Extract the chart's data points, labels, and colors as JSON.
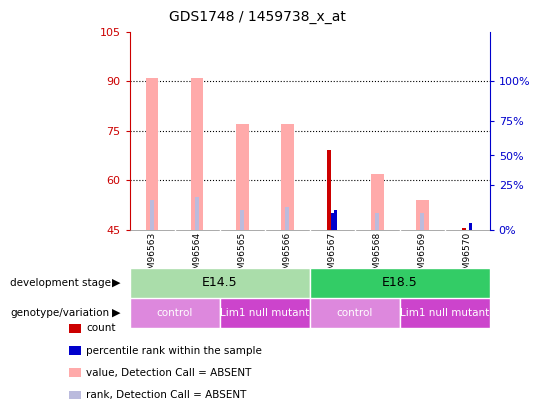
{
  "title": "GDS1748 / 1459738_x_at",
  "samples": [
    "GSM96563",
    "GSM96564",
    "GSM96565",
    "GSM96566",
    "GSM96567",
    "GSM96568",
    "GSM96569",
    "GSM96570"
  ],
  "ylim": [
    45,
    105
  ],
  "yticks_left": [
    45,
    60,
    75,
    90,
    105
  ],
  "yticks_right_labels": [
    "0%",
    "25%",
    "50%",
    "75%",
    "100%"
  ],
  "yticks_right_pos": [
    45,
    58.5,
    67.5,
    78.0,
    90.0
  ],
  "value_bars": [
    91,
    91,
    77,
    77,
    45,
    62,
    54,
    45
  ],
  "rank_bars": [
    54,
    55,
    51,
    52,
    50,
    50,
    50,
    45
  ],
  "count_bars": [
    45,
    45,
    45,
    45,
    69,
    45,
    45,
    45.5
  ],
  "percentile_bars": [
    45,
    45,
    45,
    45,
    51,
    45,
    45,
    47
  ],
  "absent_value": [
    true,
    true,
    true,
    true,
    false,
    true,
    true,
    true
  ],
  "absent_rank": [
    true,
    true,
    true,
    true,
    false,
    true,
    true,
    true
  ],
  "color_value_absent": "#ffaaaa",
  "color_rank_absent": "#bbbbdd",
  "color_count_present": "#cc0000",
  "color_percentile_present": "#0000cc",
  "dev_stages": [
    {
      "label": "E14.5",
      "start": 0,
      "end": 4,
      "color": "#aaddaa"
    },
    {
      "label": "E18.5",
      "start": 4,
      "end": 8,
      "color": "#33cc66"
    }
  ],
  "genotypes": [
    {
      "label": "control",
      "start": 0,
      "end": 2,
      "color": "#dd88dd"
    },
    {
      "label": "Lim1 null mutant",
      "start": 2,
      "end": 4,
      "color": "#cc44cc"
    },
    {
      "label": "control",
      "start": 4,
      "end": 6,
      "color": "#dd88dd"
    },
    {
      "label": "Lim1 null mutant",
      "start": 6,
      "end": 8,
      "color": "#cc44cc"
    }
  ],
  "legend_items": [
    {
      "label": "count",
      "color": "#cc0000"
    },
    {
      "label": "percentile rank within the sample",
      "color": "#0000cc"
    },
    {
      "label": "value, Detection Call = ABSENT",
      "color": "#ffaaaa"
    },
    {
      "label": "rank, Detection Call = ABSENT",
      "color": "#bbbbdd"
    }
  ],
  "axis_color_left": "#cc0000",
  "axis_color_right": "#0000cc",
  "background_color": "#ffffff",
  "grid_color": "#000000"
}
